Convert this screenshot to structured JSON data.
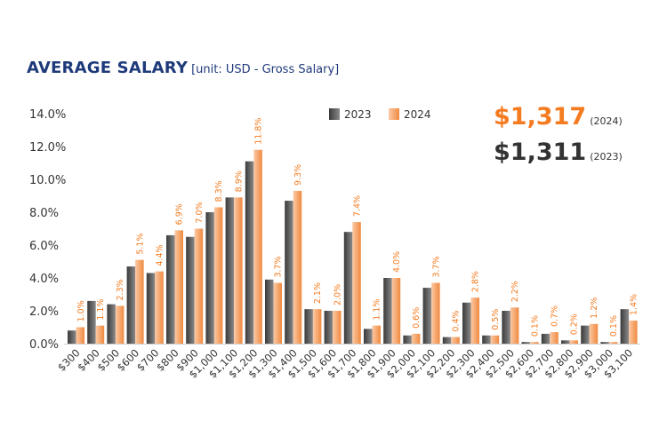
{
  "header": {
    "title": "AVERAGE SALARY",
    "subtitle": "[unit: USD - Gross Salary]"
  },
  "summary": {
    "value_2024": "$1,317",
    "label_2024": "(2024)",
    "value_2023": "$1,311",
    "label_2023": "(2023)"
  },
  "colors": {
    "accent_2024": "#f47b20",
    "text_2023": "#333333",
    "title": "#1f3a7a",
    "bar_2023_dark": "#3a3a3a",
    "bar_2023_light": "#8a8a8a",
    "bar_2024_light": "#fbc9a4",
    "bar_2024_dark": "#f08a40",
    "label": "#f47b20",
    "axis_text": "#333333"
  },
  "chart_data": {
    "type": "bar",
    "title": "AVERAGE SALARY",
    "categories": [
      "$300",
      "$400",
      "$500",
      "$600",
      "$700",
      "$800",
      "$900",
      "$1,000",
      "$1,100",
      "$1,200",
      "$1,300",
      "$1,400",
      "$1,500",
      "$1,600",
      "$1,700",
      "$1,800",
      "$1,900",
      "$2,000",
      "$2,100",
      "$2,200",
      "$2,300",
      "$2,400",
      "$2,500",
      "$2,600",
      "$2,700",
      "$2,800",
      "$2,900",
      "$3,000",
      "$3,100"
    ],
    "series": [
      {
        "name": "2023",
        "values": [
          0.8,
          2.6,
          2.4,
          4.7,
          4.3,
          6.6,
          6.5,
          8.0,
          8.9,
          11.1,
          3.9,
          8.7,
          2.1,
          2.0,
          6.8,
          0.9,
          4.0,
          0.5,
          3.4,
          0.4,
          2.5,
          0.5,
          2.0,
          0.1,
          0.6,
          0.2,
          1.1,
          0.1,
          2.1
        ]
      },
      {
        "name": "2024",
        "values": [
          1.0,
          1.1,
          2.3,
          5.1,
          4.4,
          6.9,
          7.0,
          8.3,
          8.9,
          11.8,
          3.7,
          9.3,
          2.1,
          2.0,
          7.4,
          1.1,
          4.0,
          0.6,
          3.7,
          0.4,
          2.8,
          0.5,
          2.2,
          0.1,
          0.7,
          0.2,
          1.2,
          0.1,
          1.4
        ]
      }
    ],
    "data_labels": [
      "1.0%",
      "1.1%",
      "2.3%",
      "5.1%",
      "4.4%",
      "6.9%",
      "7.0%",
      "8.3%",
      "8.9%",
      "11.8%",
      "3.7%",
      "9.3%",
      "2.1%",
      "2.0%",
      "7.4%",
      "1.1%",
      "4.0%",
      "0.6%",
      "3.7%",
      "0.4%",
      "2.8%",
      "0.5%",
      "2.2%",
      "0.1%",
      "0.7%",
      "0.2%",
      "1.2%",
      "0.1%",
      "1.4%"
    ],
    "yticks": [
      "0.0%",
      "2.0%",
      "4.0%",
      "6.0%",
      "8.0%",
      "10.0%",
      "12.0%",
      "14.0%"
    ],
    "ylim": [
      0,
      14
    ],
    "legend": [
      "2023",
      "2024"
    ],
    "legend_position": "top-center",
    "xlabel": "",
    "ylabel": ""
  }
}
